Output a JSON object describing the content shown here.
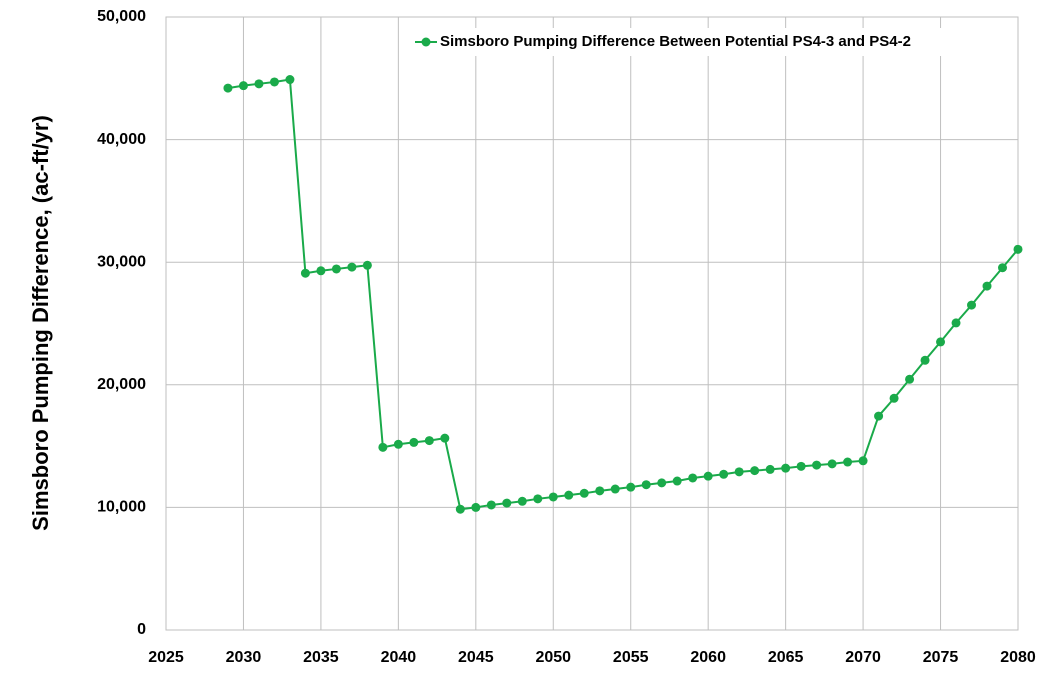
{
  "chart_data": {
    "type": "line",
    "ylabel": "Simsboro Pumping Difference, (ac-ft/yr)",
    "x": [
      2029,
      2030,
      2031,
      2032,
      2033,
      2034,
      2035,
      2036,
      2037,
      2038,
      2039,
      2040,
      2041,
      2042,
      2043,
      2044,
      2045,
      2046,
      2047,
      2048,
      2049,
      2050,
      2051,
      2052,
      2053,
      2054,
      2055,
      2056,
      2057,
      2058,
      2059,
      2060,
      2061,
      2062,
      2063,
      2064,
      2065,
      2066,
      2067,
      2068,
      2069,
      2070,
      2071,
      2072,
      2073,
      2074,
      2075,
      2076,
      2077,
      2078,
      2079,
      2080
    ],
    "series": [
      {
        "name": "Simsboro Pumping Difference Between Potential PS4-3 and PS4-2",
        "color": "#1aaa4a",
        "values": [
          44200,
          44400,
          44550,
          44700,
          44900,
          29100,
          29300,
          29450,
          29600,
          29750,
          14900,
          15150,
          15300,
          15450,
          15650,
          9850,
          10000,
          10200,
          10350,
          10500,
          10700,
          10850,
          11000,
          11150,
          11350,
          11500,
          11650,
          11850,
          12000,
          12150,
          12400,
          12550,
          12700,
          12900,
          13000,
          13100,
          13200,
          13350,
          13450,
          13550,
          13700,
          13800,
          17450,
          18900,
          20450,
          22000,
          23500,
          25050,
          26500,
          28050,
          29550,
          31050
        ]
      }
    ],
    "xlim": [
      2025,
      2080
    ],
    "xticks": [
      2025,
      2030,
      2035,
      2040,
      2045,
      2050,
      2055,
      2060,
      2065,
      2070,
      2075,
      2080
    ],
    "ylim": [
      0,
      50000
    ],
    "yticks": [
      0,
      {
        "value": 10000,
        "label": "10,000"
      },
      {
        "value": 20000,
        "label": "20,000"
      },
      {
        "value": 30000,
        "label": "30,000"
      },
      {
        "value": 40000,
        "label": "40,000"
      },
      {
        "value": 50000,
        "label": "50,000"
      }
    ],
    "grid": true,
    "legend": "top-right"
  }
}
